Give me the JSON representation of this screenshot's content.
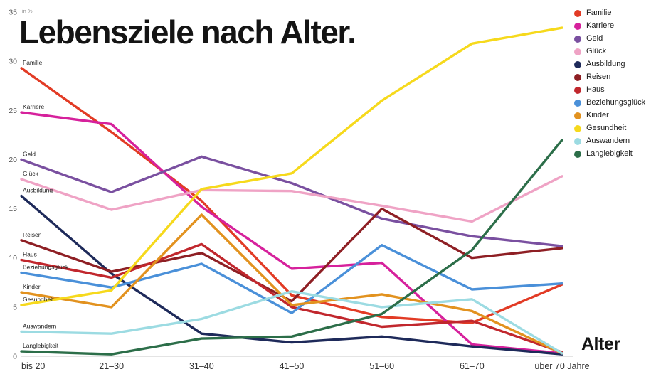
{
  "title": "Lebensziele nach Alter.",
  "chart_data": {
    "type": "line",
    "title": "Lebensziele nach Alter.",
    "xlabel": "Alter",
    "ylabel": "in %",
    "ylim": [
      0,
      35
    ],
    "yticks": [
      0,
      5,
      10,
      15,
      20,
      25,
      30,
      35
    ],
    "grid": false,
    "legend_position": "top-right",
    "categories": [
      "bis 20",
      "21–30",
      "31–40",
      "41–50",
      "51–60",
      "61–70",
      "über 70 Jahre"
    ],
    "series": [
      {
        "name": "Familie",
        "color": "#e23b25",
        "values": [
          29.3,
          22.8,
          15.8,
          6.2,
          4.0,
          3.4,
          7.3
        ]
      },
      {
        "name": "Karriere",
        "color": "#d6219c",
        "values": [
          24.8,
          23.6,
          15.2,
          8.9,
          9.5,
          1.2,
          0.3
        ]
      },
      {
        "name": "Geld",
        "color": "#7a50a0",
        "values": [
          20.0,
          16.7,
          20.3,
          17.6,
          14.0,
          12.2,
          11.2
        ]
      },
      {
        "name": "Glück",
        "color": "#efa3c5",
        "values": [
          18.0,
          14.9,
          16.9,
          16.8,
          15.3,
          13.7,
          18.3
        ]
      },
      {
        "name": "Ausbildung",
        "color": "#1e2a5a",
        "values": [
          16.3,
          8.4,
          2.3,
          1.4,
          2.0,
          1.0,
          0.2
        ]
      },
      {
        "name": "Reisen",
        "color": "#8e1f24",
        "values": [
          11.8,
          8.6,
          10.5,
          5.6,
          15.0,
          10.0,
          11.0
        ]
      },
      {
        "name": "Haus",
        "color": "#c1272d",
        "values": [
          9.8,
          8.0,
          11.4,
          5.0,
          3.0,
          3.6,
          0.4
        ]
      },
      {
        "name": "Beziehungsglück",
        "color": "#4a90d9",
        "values": [
          8.5,
          7.0,
          9.4,
          4.4,
          11.3,
          6.8,
          7.4
        ]
      },
      {
        "name": "Kinder",
        "color": "#e2921f",
        "values": [
          6.5,
          5.0,
          14.4,
          5.2,
          6.3,
          4.6,
          0.3
        ]
      },
      {
        "name": "Gesundheit",
        "color": "#f6d91c",
        "values": [
          5.2,
          6.7,
          17.0,
          18.6,
          26.0,
          31.8,
          33.4
        ]
      },
      {
        "name": "Auswandern",
        "color": "#9cdbe2",
        "values": [
          2.5,
          2.3,
          3.8,
          6.6,
          5.0,
          5.8,
          0.3
        ]
      },
      {
        "name": "Langlebigkeit",
        "color": "#2c6e49",
        "values": [
          0.5,
          0.2,
          1.8,
          2.0,
          4.3,
          10.8,
          22.0
        ]
      }
    ]
  }
}
